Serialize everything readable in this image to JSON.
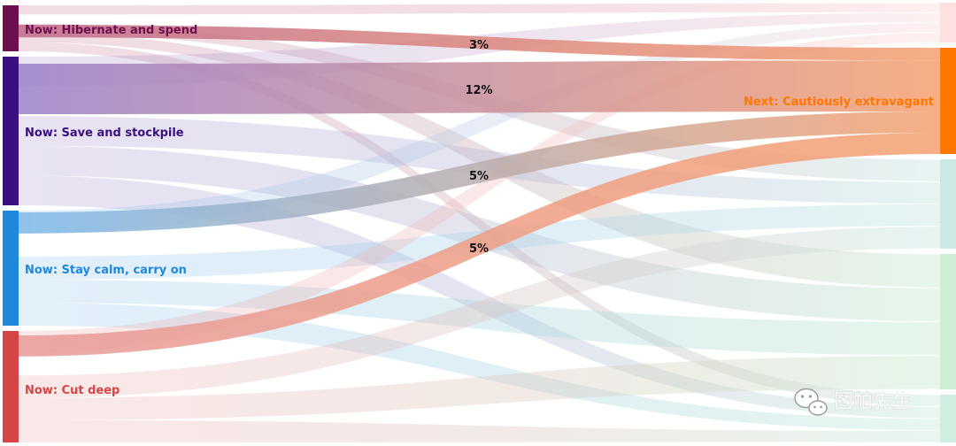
{
  "chart_data": {
    "type": "sankey",
    "sources": [
      {
        "name": "Now: Hibernate and spend",
        "color": "#6e0f4f",
        "flow_color": "#c06a8a"
      },
      {
        "name": "Now: Save and stockpile",
        "color": "#3a1080",
        "flow_color": "#9b80c8"
      },
      {
        "name": "Now: Stay calm, carry on",
        "color": "#1e88dc",
        "flow_color": "#7fbaea"
      },
      {
        "name": "Now: Cut deep",
        "color": "#d64545",
        "flow_color": "#e89a9a"
      }
    ],
    "targets": [
      {
        "name": "",
        "color": "#fde0e0"
      },
      {
        "name": "Next: Cautiously extravagant",
        "color": "#ff7700"
      },
      {
        "name": "",
        "color": "#cce9e6"
      },
      {
        "name": "",
        "color": "#cdeed5"
      },
      {
        "name": "",
        "color": "#cfeee0"
      }
    ],
    "highlighted_target": "Next: Cautiously extravagant",
    "highlight_flow_color": "#f5a070",
    "highlighted_flows": [
      {
        "source": "Now: Hibernate and spend",
        "target": "Next: Cautiously extravagant",
        "value": 3,
        "label": "3%"
      },
      {
        "source": "Now: Save and stockpile",
        "target": "Next: Cautiously extravagant",
        "value": 12,
        "label": "12%"
      },
      {
        "source": "Now: Stay calm, carry on",
        "target": "Next: Cautiously extravagant",
        "value": 5,
        "label": "5%"
      },
      {
        "source": "Now: Cut deep",
        "target": "Next: Cautiously extravagant",
        "value": 5,
        "label": "5%"
      }
    ]
  },
  "watermark": {
    "icon": "wechat-icon",
    "text": "图帕先生"
  }
}
